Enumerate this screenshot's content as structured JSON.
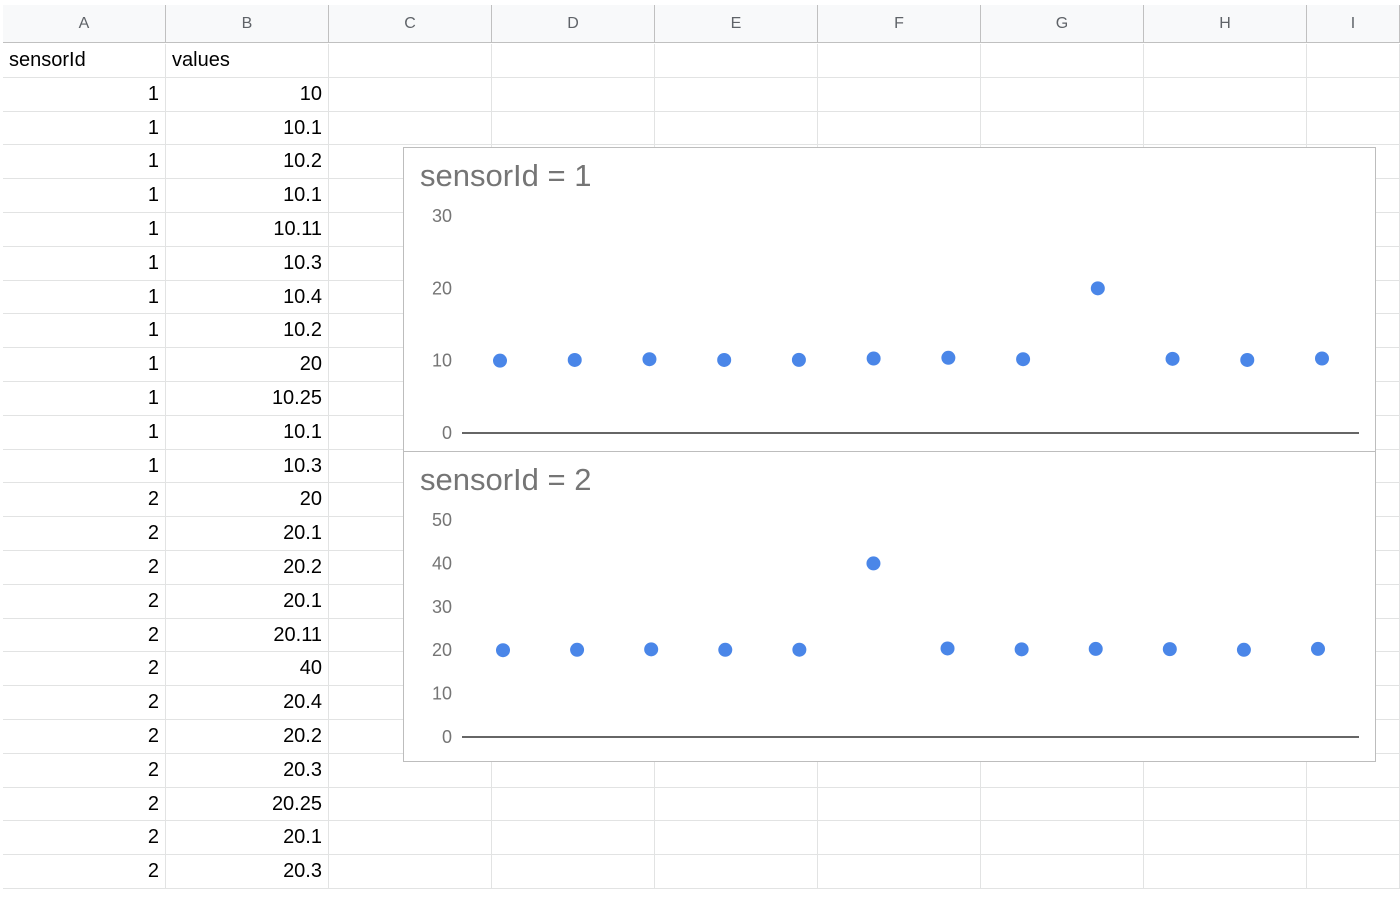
{
  "sheet": {
    "columns": [
      "A",
      "B",
      "C",
      "D",
      "E",
      "F",
      "G",
      "H",
      "I"
    ],
    "header_row": [
      "sensorId",
      "values"
    ],
    "rows": [
      [
        "1",
        "10"
      ],
      [
        "1",
        "10.1"
      ],
      [
        "1",
        "10.2"
      ],
      [
        "1",
        "10.1"
      ],
      [
        "1",
        "10.11"
      ],
      [
        "1",
        "10.3"
      ],
      [
        "1",
        "10.4"
      ],
      [
        "1",
        "10.2"
      ],
      [
        "1",
        "20"
      ],
      [
        "1",
        "10.25"
      ],
      [
        "1",
        "10.1"
      ],
      [
        "1",
        "10.3"
      ],
      [
        "2",
        "20"
      ],
      [
        "2",
        "20.1"
      ],
      [
        "2",
        "20.2"
      ],
      [
        "2",
        "20.1"
      ],
      [
        "2",
        "20.11"
      ],
      [
        "2",
        "40"
      ],
      [
        "2",
        "20.4"
      ],
      [
        "2",
        "20.2"
      ],
      [
        "2",
        "20.3"
      ],
      [
        "2",
        "20.25"
      ],
      [
        "2",
        "20.1"
      ],
      [
        "2",
        "20.3"
      ]
    ]
  },
  "chart_data": [
    {
      "type": "scatter",
      "title": "sensorId = 1",
      "x": [
        1,
        2,
        3,
        4,
        5,
        6,
        7,
        8,
        9,
        10,
        11,
        12
      ],
      "y": [
        10,
        10.1,
        10.2,
        10.1,
        10.11,
        10.3,
        10.4,
        10.2,
        20,
        10.25,
        10.1,
        10.3
      ],
      "ylim": [
        0,
        30
      ],
      "yticks": [
        "0",
        "10",
        "20",
        "30"
      ],
      "grid": false,
      "color": "#4a86e8"
    },
    {
      "type": "scatter",
      "title": "sensorId = 2",
      "x": [
        1,
        2,
        3,
        4,
        5,
        6,
        7,
        8,
        9,
        10,
        11,
        12
      ],
      "y": [
        20,
        20.1,
        20.2,
        20.1,
        20.11,
        40,
        20.4,
        20.2,
        20.3,
        20.25,
        20.1,
        20.3
      ],
      "ylim": [
        0,
        50
      ],
      "yticks": [
        "0",
        "10",
        "20",
        "30",
        "40",
        "50"
      ],
      "grid": false,
      "color": "#4a86e8"
    }
  ]
}
